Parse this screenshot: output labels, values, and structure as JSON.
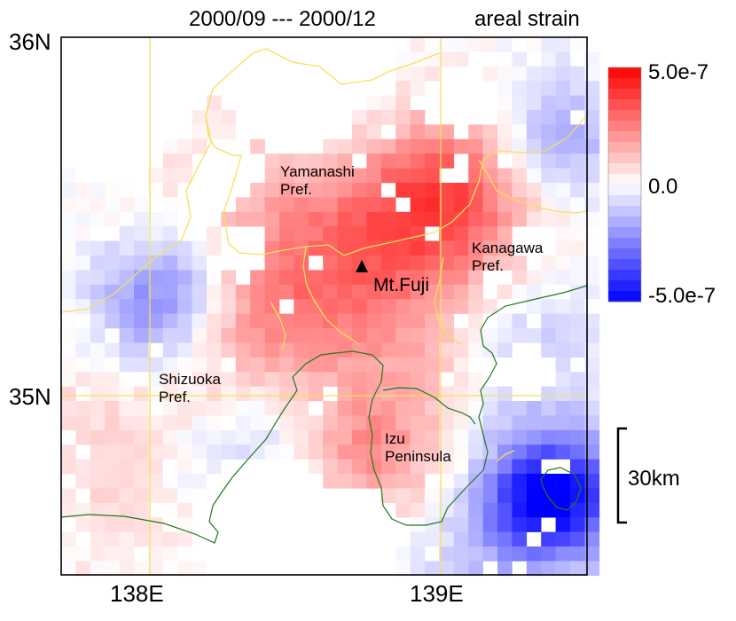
{
  "title": "2000/09 --- 2000/12",
  "subtitle": "areal strain",
  "axes": {
    "lat_top": "36N",
    "lat_mid": "35N",
    "lon_left": "138E",
    "lon_right": "139E"
  },
  "places": {
    "yamanashi": "Yamanashi\nPref.",
    "kanagawa": "Kanagawa\nPref.",
    "shizuoka": "Shizuoka\nPref.",
    "izu": "Izu\nPeninsula",
    "fuji": "Mt.Fuji"
  },
  "colorbar": {
    "max_label": "5.0e-7",
    "mid_label": "0.0",
    "min_label": "-5.0e-7",
    "max": 5e-07,
    "min": -5e-07
  },
  "scale_bar": {
    "label": "30km"
  },
  "colors": {
    "positive": "#ff0000",
    "negative": "#0000ff",
    "boundary": "#f2e25a",
    "coastline": "#1f7a1f",
    "frame": "#000000"
  }
}
